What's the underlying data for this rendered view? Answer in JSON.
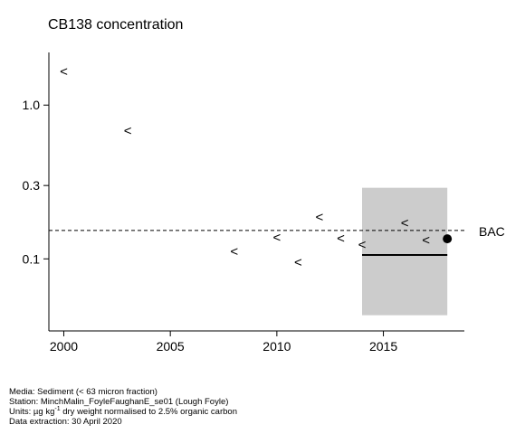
{
  "chart_data": {
    "type": "scatter",
    "title": "CB138 concentration",
    "xlabel": "",
    "ylabel": "",
    "y_scale": "log",
    "xlim": [
      1999.3,
      2018.8
    ],
    "ylim": [
      0.034,
      2.2
    ],
    "x_ticks": [
      2000,
      2005,
      2010,
      2015
    ],
    "y_ticks": [
      {
        "value": 0.1,
        "label": "0.1"
      },
      {
        "value": 0.3,
        "label": "0.3"
      },
      {
        "value": 1.0,
        "label": "1.0"
      }
    ],
    "less_than_points": [
      {
        "x": 2000,
        "y": 1.65
      },
      {
        "x": 2003,
        "y": 0.68
      },
      {
        "x": 2008,
        "y": 0.112
      },
      {
        "x": 2010,
        "y": 0.138
      },
      {
        "x": 2011,
        "y": 0.095
      },
      {
        "x": 2012,
        "y": 0.187
      },
      {
        "x": 2013,
        "y": 0.136
      },
      {
        "x": 2014,
        "y": 0.124
      },
      {
        "x": 2016,
        "y": 0.172
      },
      {
        "x": 2017,
        "y": 0.133
      }
    ],
    "reference_line": {
      "label": "BAC",
      "y": 0.153,
      "style": "dashed"
    },
    "trend_segment": {
      "x": [
        2014,
        2018
      ],
      "y": 0.106
    },
    "interval_box": {
      "x": [
        2014,
        2018
      ],
      "y": [
        0.043,
        0.29
      ]
    },
    "latest_point": {
      "x": 2018,
      "y": 0.135
    },
    "less_than_marker": "<"
  },
  "footer": {
    "media": "Media: Sediment (< 63 micron fraction)",
    "station": "Station: MinchMalin_FoyleFaughanE_se01 (Lough Foyle)",
    "units_prefix": "Units:  µg kg",
    "units_sup": "-1",
    "units_suffix": " dry weight normalised to 2.5% organic carbon",
    "extraction": "Data extraction: 30 April 2020"
  },
  "colors": {
    "box_fill": "#cccccc",
    "axis": "#000000"
  }
}
